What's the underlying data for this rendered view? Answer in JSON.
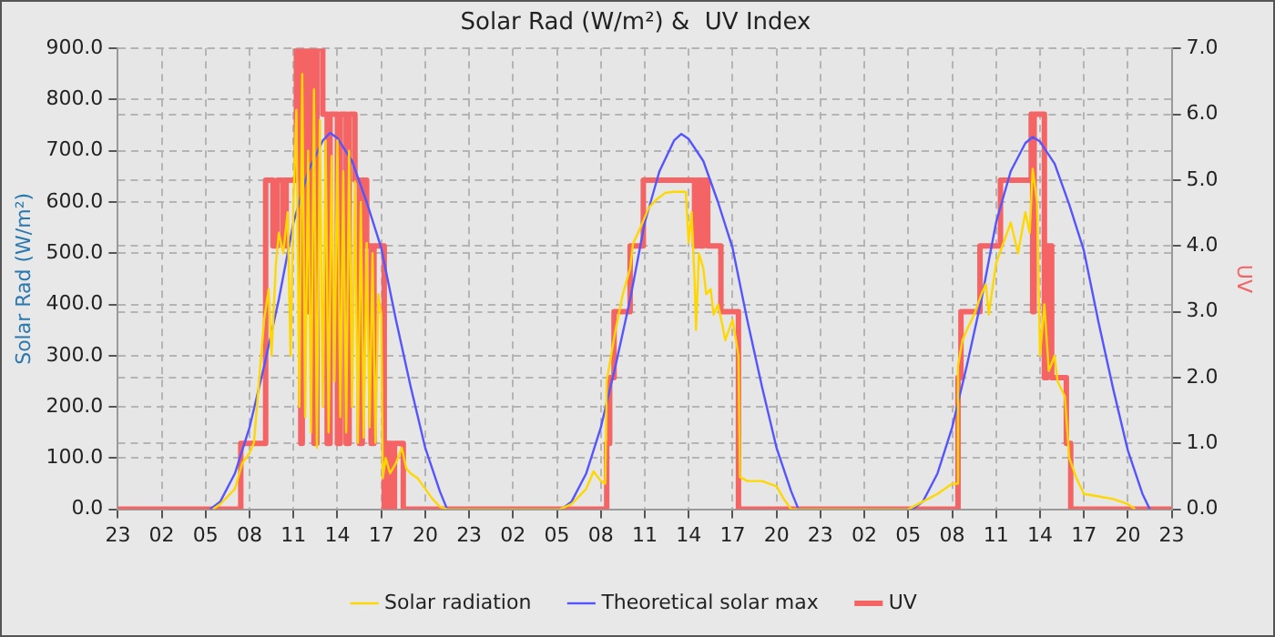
{
  "chart_data": {
    "type": "line",
    "title": "Solar Rad (W/m²) &  UV Index",
    "ylabel": "Solar Rad (W/m²)",
    "y2label": "UV",
    "xlim": [
      "--01-01T23:00",
      "--01-04T23:00"
    ],
    "xticks": [
      {
        "value": "--01-01T23:00",
        "label": "23"
      },
      {
        "value": "--01-02T02:00",
        "label": "02"
      },
      {
        "value": "--01-02T05:00",
        "label": "05"
      },
      {
        "value": "--01-02T08:00",
        "label": "08"
      },
      {
        "value": "--01-02T11:00",
        "label": "11"
      },
      {
        "value": "--01-02T14:00",
        "label": "14"
      },
      {
        "value": "--01-02T17:00",
        "label": "17"
      },
      {
        "value": "--01-02T20:00",
        "label": "20"
      },
      {
        "value": "--01-02T23:00",
        "label": "23"
      },
      {
        "value": "--01-03T02:00",
        "label": "02"
      },
      {
        "value": "--01-03T05:00",
        "label": "05"
      },
      {
        "value": "--01-03T08:00",
        "label": "08"
      },
      {
        "value": "--01-03T11:00",
        "label": "11"
      },
      {
        "value": "--01-03T14:00",
        "label": "14"
      },
      {
        "value": "--01-03T17:00",
        "label": "17"
      },
      {
        "value": "--01-03T20:00",
        "label": "20"
      },
      {
        "value": "--01-03T23:00",
        "label": "23"
      },
      {
        "value": "--01-04T02:00",
        "label": "02"
      },
      {
        "value": "--01-04T05:00",
        "label": "05"
      },
      {
        "value": "--01-04T08:00",
        "label": "08"
      },
      {
        "value": "--01-04T11:00",
        "label": "11"
      },
      {
        "value": "--01-04T14:00",
        "label": "14"
      },
      {
        "value": "--01-04T17:00",
        "label": "17"
      },
      {
        "value": "--01-04T20:00",
        "label": "20"
      },
      {
        "value": "--01-04T23:00",
        "label": "23"
      }
    ],
    "ylim": [
      0,
      900
    ],
    "yticks": [
      {
        "value": 0,
        "label": "0.0"
      },
      {
        "value": 100,
        "label": "100.0"
      },
      {
        "value": 200,
        "label": "200.0"
      },
      {
        "value": 300,
        "label": "300.0"
      },
      {
        "value": 400,
        "label": "400.0"
      },
      {
        "value": 500,
        "label": "500.0"
      },
      {
        "value": 600,
        "label": "600.0"
      },
      {
        "value": 700,
        "label": "700.0"
      },
      {
        "value": 800,
        "label": "800.0"
      },
      {
        "value": 900,
        "label": "900.0"
      }
    ],
    "y2lim": [
      0,
      7
    ],
    "y2ticks": [
      {
        "value": 0,
        "label": "0.0"
      },
      {
        "value": 1,
        "label": "1.0"
      },
      {
        "value": 2,
        "label": "2.0"
      },
      {
        "value": 3,
        "label": "3.0"
      },
      {
        "value": 4,
        "label": "4.0"
      },
      {
        "value": 5,
        "label": "5.0"
      },
      {
        "value": 6,
        "label": "6.0"
      },
      {
        "value": 7,
        "label": "7.0"
      }
    ],
    "grid": true,
    "legend": "bottom",
    "marker": "none",
    "line_style": "solid",
    "series": [
      {
        "name": "Solar radiation",
        "color": "#ffd700",
        "x": [
          "--01-02T05:30",
          "--01-02T06:00",
          "--01-02T07:00",
          "--01-02T07:30",
          "--01-02T08:00",
          "--01-02T08:18",
          "--01-02T08:30",
          "--01-02T09:00",
          "--01-02T09:18",
          "--01-02T09:30",
          "--01-02T09:48",
          "--01-02T10:00",
          "--01-02T10:18",
          "--01-02T10:36",
          "--01-02T10:48",
          "--01-02T11:00",
          "--01-02T11:12",
          "--01-02T11:24",
          "--01-02T11:36",
          "--01-02T11:48",
          "--01-02T12:00",
          "--01-02T12:12",
          "--01-02T12:24",
          "--01-02T12:36",
          "--01-02T12:48",
          "--01-02T13:00",
          "--01-02T13:12",
          "--01-02T13:24",
          "--01-02T13:36",
          "--01-02T13:48",
          "--01-02T14:00",
          "--01-02T14:12",
          "--01-02T14:24",
          "--01-02T14:36",
          "--01-02T14:48",
          "--01-02T15:00",
          "--01-02T15:12",
          "--01-02T15:24",
          "--01-02T15:36",
          "--01-02T15:48",
          "--01-02T16:00",
          "--01-02T16:12",
          "--01-02T16:24",
          "--01-02T16:36",
          "--01-02T16:48",
          "--01-02T17:00",
          "--01-02T17:06",
          "--01-02T17:18",
          "--01-02T17:36",
          "--01-02T18:00",
          "--01-02T18:24",
          "--01-02T18:42",
          "--01-02T19:00",
          "--01-02T19:30",
          "--01-02T20:00",
          "--01-02T20:30",
          "--01-02T21:00",
          "--01-02T21:30",
          "--01-03T05:12",
          "--01-03T06:00",
          "--01-03T07:00",
          "--01-03T07:30",
          "--01-03T08:00",
          "--01-03T08:18",
          "--01-03T08:24",
          "--01-03T08:42",
          "--01-03T09:00",
          "--01-03T09:30",
          "--01-03T10:00",
          "--01-03T10:12",
          "--01-03T10:42",
          "--01-03T11:18",
          "--01-03T11:48",
          "--01-03T12:24",
          "--01-03T13:00",
          "--01-03T13:48",
          "--01-03T14:00",
          "--01-03T14:12",
          "--01-03T14:24",
          "--01-03T14:30",
          "--01-03T14:42",
          "--01-03T15:00",
          "--01-03T15:12",
          "--01-03T15:30",
          "--01-03T15:42",
          "--01-03T16:00",
          "--01-03T16:18",
          "--01-03T16:30",
          "--01-03T17:00",
          "--01-03T17:24",
          "--01-03T17:30",
          "--01-03T18:00",
          "--01-03T19:00",
          "--01-03T20:00",
          "--01-03T20:30",
          "--01-03T21:00",
          "--01-04T05:00",
          "--01-04T06:00",
          "--01-04T07:00",
          "--01-04T08:00",
          "--01-04T08:18",
          "--01-04T08:24",
          "--01-04T08:42",
          "--01-04T09:00",
          "--01-04T09:30",
          "--01-04T10:00",
          "--01-04T10:18",
          "--01-04T10:30",
          "--01-04T11:00",
          "--01-04T11:30",
          "--01-04T12:00",
          "--01-04T12:30",
          "--01-04T13:00",
          "--01-04T13:18",
          "--01-04T13:30",
          "--01-04T13:48",
          "--01-04T14:00",
          "--01-04T14:18",
          "--01-04T14:36",
          "--01-04T15:00",
          "--01-04T15:12",
          "--01-04T15:42",
          "--01-04T16:00",
          "--01-04T16:30",
          "--01-04T17:00",
          "--01-04T18:00",
          "--01-04T19:00",
          "--01-04T20:00",
          "--01-04T20:30"
        ],
        "values": [
          0,
          10,
          40,
          90,
          110,
          130,
          200,
          370,
          430,
          300,
          480,
          540,
          500,
          580,
          300,
          600,
          780,
          200,
          850,
          180,
          700,
          150,
          820,
          120,
          760,
          200,
          720,
          150,
          690,
          250,
          720,
          180,
          660,
          150,
          700,
          200,
          640,
          130,
          600,
          140,
          520,
          160,
          500,
          130,
          420,
          380,
          60,
          100,
          70,
          90,
          120,
          80,
          70,
          60,
          40,
          20,
          5,
          0,
          0,
          10,
          40,
          74,
          55,
          50,
          250,
          300,
          350,
          420,
          470,
          519,
          550,
          590,
          605,
          618,
          620,
          620,
          520,
          580,
          450,
          350,
          500,
          470,
          420,
          430,
          380,
          400,
          360,
          330,
          370,
          300,
          63,
          55,
          55,
          45,
          20,
          0,
          0,
          15,
          30,
          50,
          50,
          280,
          330,
          350,
          380,
          420,
          440,
          380,
          480,
          520,
          560,
          500,
          580,
          540,
          665,
          600,
          300,
          400,
          270,
          300,
          250,
          220,
          100,
          60,
          30,
          25,
          20,
          10,
          0
        ]
      },
      {
        "name": "Theoretical solar max",
        "color": "#5555ff",
        "x": [
          "--01-02T05:18",
          "--01-02T06:00",
          "--01-02T07:00",
          "--01-02T08:00",
          "--01-02T09:00",
          "--01-02T10:00",
          "--01-02T11:00",
          "--01-02T12:00",
          "--01-02T13:00",
          "--01-02T13:30",
          "--01-02T14:00",
          "--01-02T15:00",
          "--01-02T16:00",
          "--01-02T17:00",
          "--01-02T18:00",
          "--01-02T19:00",
          "--01-02T20:00",
          "--01-02T21:00",
          "--01-02T21:30",
          "--01-03T05:18",
          "--01-03T06:00",
          "--01-03T07:00",
          "--01-03T08:00",
          "--01-03T09:00",
          "--01-03T10:00",
          "--01-03T11:00",
          "--01-03T12:00",
          "--01-03T13:00",
          "--01-03T13:30",
          "--01-03T14:00",
          "--01-03T15:00",
          "--01-03T16:00",
          "--01-03T17:00",
          "--01-03T18:00",
          "--01-03T19:00",
          "--01-03T20:00",
          "--01-03T21:00",
          "--01-03T21:30",
          "--01-04T05:18",
          "--01-04T06:00",
          "--01-04T07:00",
          "--01-04T08:00",
          "--01-04T09:00",
          "--01-04T10:00",
          "--01-04T11:00",
          "--01-04T12:00",
          "--01-04T13:00",
          "--01-04T13:30",
          "--01-04T14:00",
          "--01-04T15:00",
          "--01-04T16:00",
          "--01-04T17:00",
          "--01-04T18:00",
          "--01-04T19:00",
          "--01-04T20:00",
          "--01-04T21:00",
          "--01-04T21:30"
        ],
        "values": [
          0,
          15,
          70,
          160,
          280,
          410,
          560,
          660,
          720,
          735,
          725,
          680,
          600,
          510,
          370,
          240,
          120,
          35,
          0,
          0,
          15,
          70,
          160,
          280,
          410,
          560,
          660,
          720,
          733,
          723,
          680,
          600,
          510,
          370,
          240,
          120,
          35,
          0,
          0,
          15,
          70,
          160,
          280,
          410,
          560,
          660,
          715,
          727,
          718,
          675,
          595,
          505,
          365,
          235,
          115,
          30,
          0
        ]
      },
      {
        "name": "UV",
        "color": "#f46464",
        "type": "step",
        "axis": "y2",
        "x": [
          "--01-01T23:00",
          "--01-02T07:24",
          "--01-02T09:06",
          "--01-02T09:36",
          "--01-02T09:54",
          "--01-02T10:18",
          "--01-02T10:30",
          "--01-02T11:12",
          "--01-02T11:30",
          "--01-02T11:36",
          "--01-02T11:54",
          "--01-02T12:06",
          "--01-02T12:24",
          "--01-02T12:36",
          "--01-02T13:00",
          "--01-02T13:18",
          "--01-02T13:30",
          "--01-02T14:00",
          "--01-02T14:12",
          "--01-02T14:36",
          "--01-02T14:48",
          "--01-02T15:12",
          "--01-02T15:30",
          "--01-02T15:42",
          "--01-02T16:00",
          "--01-02T16:18",
          "--01-02T16:30",
          "--01-02T17:12",
          "--01-02T17:24",
          "--01-02T17:42",
          "--01-02T17:54",
          "--01-02T18:30",
          "--01-03T08:24",
          "--01-03T08:36",
          "--01-03T08:54",
          "--01-03T10:00",
          "--01-03T10:54",
          "--01-03T14:24",
          "--01-03T14:36",
          "--01-03T14:48",
          "--01-03T15:00",
          "--01-03T15:18",
          "--01-03T16:12",
          "--01-03T17:24",
          "--01-04T08:24",
          "--01-04T08:36",
          "--01-04T09:54",
          "--01-04T11:18",
          "--01-04T13:24",
          "--01-04T13:30",
          "--01-04T13:36",
          "--01-04T14:18",
          "--01-04T14:30",
          "--01-04T14:48",
          "--01-04T15:48",
          "--01-04T16:06",
          "--01-04T23:00"
        ],
        "values": [
          0,
          1,
          5,
          4,
          5,
          4,
          5,
          7,
          1,
          7,
          3,
          7,
          1,
          7,
          6,
          1,
          6,
          1,
          6,
          1,
          6,
          5,
          1,
          5,
          4,
          1,
          4,
          0,
          1,
          0,
          1,
          0,
          1,
          2,
          3,
          4,
          5,
          4,
          5,
          4,
          5,
          4,
          3,
          0,
          2,
          3,
          4,
          5,
          6,
          3,
          6,
          2,
          4,
          2,
          1,
          0,
          0
        ]
      }
    ]
  }
}
